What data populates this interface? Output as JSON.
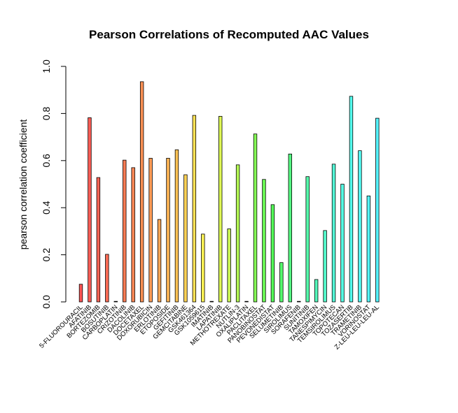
{
  "chart_data": {
    "type": "bar",
    "title": "Pearson Correlations of Recomputed AAC Values",
    "xlabel": "",
    "ylabel": "pearson correlation coefficient",
    "ylim": [
      0,
      1
    ],
    "yticks": [
      "0.0",
      "0.2",
      "0.4",
      "0.6",
      "0.8",
      "1.0"
    ],
    "grid": false,
    "legend": "none",
    "categories": [
      "5-FLUOROURACIL",
      "AFATINIB",
      "BORTEZOMIB",
      "BOSUTINIB",
      "CARBOPLATIN",
      "CRIZOTINIB",
      "DACOLINIB",
      "DOCETAXEL",
      "DOXORUBICIN",
      "ERLOTINIB",
      "ETOPOSIDE",
      "GEFITINIB",
      "GEMCITABINE",
      "GSK461364",
      "GSK1059615",
      "IMATINIB",
      "LAPATINIB",
      "METHOTREXATE",
      "NUTLIN-3",
      "OXALIPLATIN",
      "PACLITAXEL",
      "PANOBINOSTAT",
      "PEVONEDISTAT",
      "SELUMETINIB",
      "SIROLIMUS",
      "SORAFENIB",
      "SUNITINIB",
      "TAMOXIFEN",
      "TANESPIMYCIN",
      "TEMSIROLIMUS",
      "TOPOTECAN",
      "TOZASERTIB",
      "TRAMETINIB",
      "VORINOSTAT",
      "Z-LEU-LEU-LEU-AL"
    ],
    "values": [
      0.075,
      0.782,
      0.528,
      0.202,
      0.0,
      0.602,
      0.57,
      0.935,
      0.61,
      0.35,
      0.61,
      0.646,
      0.54,
      0.792,
      0.288,
      0.0,
      0.788,
      0.31,
      0.582,
      0.0,
      0.713,
      0.52,
      0.413,
      0.167,
      0.628,
      0.0,
      0.532,
      0.095,
      0.303,
      0.585,
      0.5,
      0.873,
      0.642,
      0.45,
      0.78
    ],
    "colors": [
      "#FF5555",
      "#FF5C55",
      "#FF6455",
      "#FF6C55",
      "#FF7555",
      "#FF7D55",
      "#FF8755",
      "#FF9155",
      "#FF9B55",
      "#FFA755",
      "#FFB555",
      "#FFC355",
      "#FFD255",
      "#FFE255",
      "#FFF255",
      "#F2FF55",
      "#E0FF55",
      "#CCFF55",
      "#B6FF55",
      "#9EFF55",
      "#85FF55",
      "#6CFF55",
      "#55FF5A",
      "#55FF6E",
      "#55FF83",
      "#55FF98",
      "#55FFAC",
      "#55FFBE",
      "#55FFCD",
      "#55FFDA",
      "#55FFE5",
      "#55FFEE",
      "#55FFF5",
      "#55FBFF",
      "#55F4FF"
    ]
  }
}
